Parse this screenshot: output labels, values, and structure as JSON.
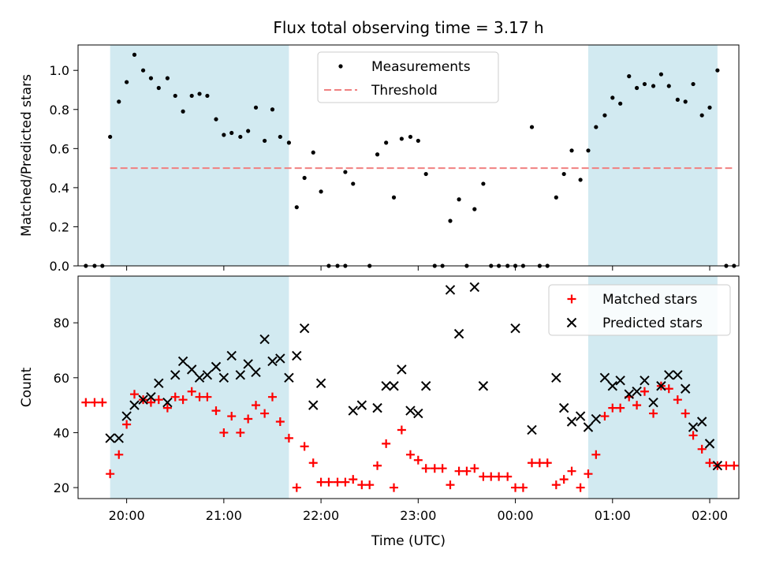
{
  "title": "Flux total observing time = 3.17 h",
  "chart_data": [
    {
      "type": "scatter",
      "ylabel": "Matched/Predicted stars",
      "xlabel": "",
      "xlim": [
        19.5,
        26.3
      ],
      "ylim": [
        0,
        1.13
      ],
      "y_ticks": [
        0.0,
        0.2,
        0.4,
        0.6,
        0.8,
        1.0
      ],
      "y_tick_labels": [
        "0.0",
        "0.2",
        "0.4",
        "0.6",
        "0.8",
        "1.0"
      ],
      "legend": {
        "placement": "upper center",
        "entries": [
          "Measurements",
          "Threshold"
        ]
      },
      "threshold": {
        "name": "Threshold",
        "value": 0.5,
        "x_range": [
          19.83,
          26.23
        ],
        "color": "#f08080"
      },
      "shaded_regions": [
        [
          19.83,
          21.67
        ],
        [
          24.75,
          26.08
        ]
      ],
      "shade_color": "#add8e6",
      "series": [
        {
          "name": "Measurements",
          "color": "#000000",
          "marker": "dot",
          "x": [
            19.83,
            19.92,
            20.0,
            20.08,
            20.17,
            20.25,
            20.33,
            20.42,
            20.5,
            20.58,
            20.67,
            20.75,
            20.83,
            20.92,
            21.0,
            21.08,
            21.17,
            21.25,
            21.33,
            21.42,
            21.5,
            21.58,
            21.67,
            21.75,
            21.83,
            21.92,
            22.0,
            22.25,
            22.33,
            22.58,
            22.67,
            22.75,
            22.83,
            22.92,
            23.0,
            23.08,
            23.33,
            23.42,
            23.58,
            23.67,
            24.17,
            24.42,
            24.5,
            24.58,
            24.67,
            24.75,
            24.83,
            24.92,
            25.0,
            25.08,
            25.17,
            25.25,
            25.33,
            25.42,
            25.5,
            25.58,
            25.67,
            25.75,
            25.83,
            25.92,
            26.0,
            26.08
          ],
          "y": [
            0.66,
            0.84,
            0.94,
            1.08,
            1.0,
            0.96,
            0.91,
            0.96,
            0.87,
            0.79,
            0.87,
            0.88,
            0.87,
            0.75,
            0.67,
            0.68,
            0.66,
            0.69,
            0.81,
            0.64,
            0.8,
            0.66,
            0.63,
            0.3,
            0.45,
            0.58,
            0.38,
            0.48,
            0.42,
            0.57,
            0.63,
            0.35,
            0.65,
            0.66,
            0.64,
            0.47,
            0.23,
            0.34,
            0.29,
            0.42,
            0.71,
            0.35,
            0.47,
            0.59,
            0.44,
            0.59,
            0.71,
            0.77,
            0.86,
            0.83,
            0.97,
            0.91,
            0.93,
            0.92,
            0.98,
            0.92,
            0.85,
            0.84,
            0.93,
            0.77,
            0.81,
            1.0
          ]
        },
        {
          "name": "",
          "color": "#000000",
          "marker": "dot",
          "x": [
            19.58,
            19.67,
            19.75,
            22.08,
            22.17,
            22.25,
            22.5,
            23.17,
            23.25,
            23.5,
            23.75,
            23.83,
            23.92,
            24.0,
            24.08,
            24.25,
            24.33,
            26.17,
            26.25
          ],
          "y": [
            0,
            0,
            0,
            0,
            0,
            0,
            0,
            0,
            0,
            0,
            0,
            0,
            0,
            0,
            0,
            0,
            0,
            0,
            0
          ]
        }
      ]
    },
    {
      "type": "scatter",
      "ylabel": "Count",
      "xlabel": "Time (UTC)",
      "xlim": [
        19.5,
        26.3
      ],
      "ylim": [
        16,
        97
      ],
      "y_ticks": [
        20,
        40,
        60,
        80
      ],
      "y_tick_labels": [
        "20",
        "40",
        "60",
        "80"
      ],
      "x_ticks": [
        20,
        21,
        22,
        23,
        24,
        25,
        26
      ],
      "x_tick_labels": [
        "20:00",
        "21:00",
        "22:00",
        "23:00",
        "00:00",
        "01:00",
        "02:00"
      ],
      "legend": {
        "placement": "upper right",
        "entries": [
          "Matched stars",
          "Predicted stars"
        ]
      },
      "shaded_regions": [
        [
          19.83,
          21.67
        ],
        [
          24.75,
          26.08
        ]
      ],
      "shade_color": "#add8e6",
      "series": [
        {
          "name": "Matched stars",
          "color": "#ff0000",
          "marker": "plus",
          "x": [
            19.58,
            19.67,
            19.75,
            19.83,
            19.92,
            20.0,
            20.08,
            20.17,
            20.25,
            20.33,
            20.42,
            20.5,
            20.58,
            20.67,
            20.75,
            20.83,
            20.92,
            21.0,
            21.08,
            21.17,
            21.25,
            21.33,
            21.42,
            21.5,
            21.58,
            21.67,
            21.75,
            21.83,
            21.92,
            22.0,
            22.08,
            22.17,
            22.25,
            22.33,
            22.42,
            22.5,
            22.58,
            22.67,
            22.75,
            22.83,
            22.92,
            23.0,
            23.08,
            23.17,
            23.25,
            23.33,
            23.42,
            23.5,
            23.58,
            23.67,
            23.75,
            23.83,
            23.92,
            24.0,
            24.08,
            24.17,
            24.25,
            24.33,
            24.42,
            24.5,
            24.58,
            24.67,
            24.75,
            24.83,
            24.92,
            25.0,
            25.08,
            25.17,
            25.25,
            25.33,
            25.42,
            25.5,
            25.58,
            25.67,
            25.75,
            25.83,
            25.92,
            26.0,
            26.08,
            26.17,
            26.25
          ],
          "y": [
            51,
            51,
            51,
            25,
            32,
            43,
            54,
            52,
            51,
            52,
            49,
            53,
            52,
            55,
            53,
            53,
            48,
            40,
            46,
            40,
            45,
            50,
            47,
            53,
            44,
            38,
            20,
            35,
            29,
            22,
            22,
            22,
            22,
            23,
            21,
            21,
            28,
            36,
            20,
            41,
            32,
            30,
            27,
            27,
            27,
            21,
            26,
            26,
            27,
            24,
            24,
            24,
            24,
            20,
            20,
            29,
            29,
            29,
            21,
            23,
            26,
            20,
            25,
            32,
            46,
            49,
            49,
            53,
            50,
            55,
            47,
            57,
            56,
            52,
            47,
            39,
            34,
            29,
            28,
            28,
            28
          ]
        },
        {
          "name": "Predicted stars",
          "color": "#000000",
          "marker": "x",
          "x": [
            19.83,
            19.92,
            20.0,
            20.08,
            20.17,
            20.25,
            20.33,
            20.42,
            20.5,
            20.58,
            20.67,
            20.75,
            20.83,
            20.92,
            21.0,
            21.08,
            21.17,
            21.25,
            21.33,
            21.42,
            21.5,
            21.58,
            21.67,
            21.75,
            21.83,
            21.92,
            22.0,
            22.33,
            22.42,
            22.58,
            22.67,
            22.75,
            22.83,
            22.92,
            23.0,
            23.08,
            23.33,
            23.42,
            23.58,
            23.67,
            24.0,
            24.17,
            24.42,
            24.5,
            24.58,
            24.67,
            24.75,
            24.83,
            24.92,
            25.0,
            25.08,
            25.17,
            25.25,
            25.33,
            25.42,
            25.5,
            25.58,
            25.67,
            25.75,
            25.83,
            25.92,
            26.0,
            26.08
          ],
          "y": [
            38,
            38,
            46,
            50,
            52,
            53,
            58,
            51,
            61,
            66,
            63,
            60,
            61,
            64,
            60,
            68,
            61,
            65,
            62,
            74,
            66,
            67,
            60,
            68,
            78,
            50,
            58,
            48,
            50,
            49,
            57,
            57,
            63,
            48,
            47,
            57,
            92,
            76,
            93,
            57,
            78,
            41,
            60,
            49,
            44,
            46,
            42,
            45,
            60,
            57,
            59,
            54,
            55,
            59,
            51,
            57,
            61,
            61,
            56,
            42,
            44,
            36,
            28
          ]
        }
      ]
    }
  ]
}
